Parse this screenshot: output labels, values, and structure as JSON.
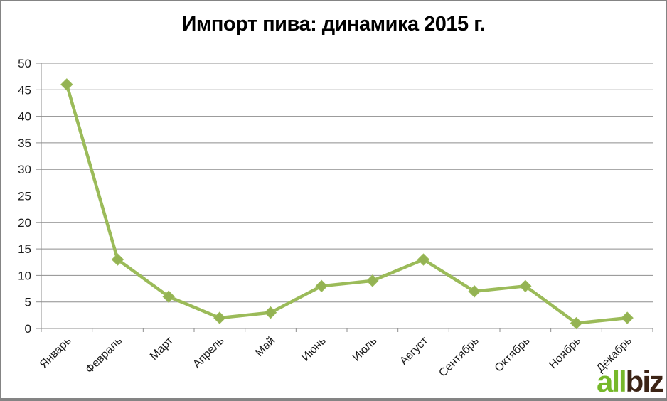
{
  "chart_data": {
    "type": "line",
    "title": "Импорт пива: динамика 2015 г.",
    "categories": [
      "Январь",
      "Февраль",
      "Март",
      "Апрель",
      "Май",
      "Июнь",
      "Июль",
      "Август",
      "Сентябрь",
      "Октябрь",
      "Ноябрь",
      "Декабрь"
    ],
    "series": [
      {
        "values": [
          46,
          13,
          6,
          2,
          3,
          8,
          9,
          13,
          7,
          8,
          1,
          2
        ]
      }
    ],
    "xlabel": "",
    "ylabel": "",
    "ylim": [
      0,
      50
    ],
    "ytick_step": 5,
    "grid": "horizontal-on",
    "legend": "none",
    "marker": "diamond"
  },
  "colors": {
    "series_line": "#9bbb59",
    "marker": "#94b353",
    "gridline": "#8e8e8e",
    "axis": "#8e8e8e",
    "title_text": "#000000",
    "tick_text": "#1a1a1a",
    "logo_green": "#76b82a",
    "logo_brown": "#3c2415",
    "frame_border": "#848484"
  },
  "logo": {
    "text_green": "all",
    "text_dark": "biz"
  }
}
